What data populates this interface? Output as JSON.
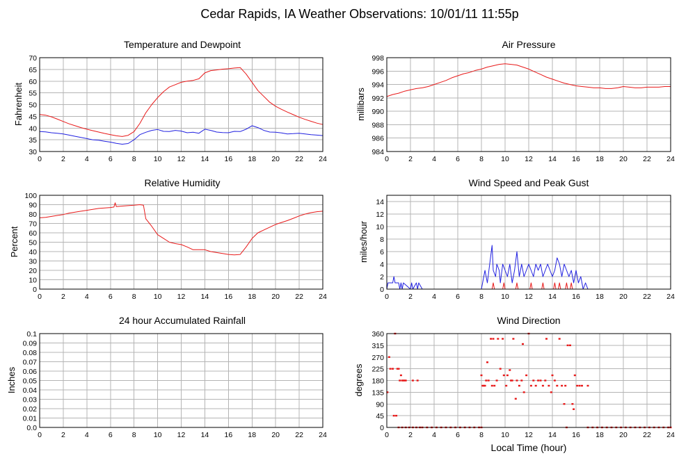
{
  "page_title": "Cedar Rapids, IA Weather Observations: 10/01/11 11:55p",
  "shared_xlabel": "Local Time (hour)",
  "colors": {
    "primary": "#e81919",
    "secondary": "#2020e0",
    "grid": "#b4b4b4",
    "frame": "#000000"
  },
  "chart_data": [
    {
      "id": "temperature",
      "type": "line",
      "title": "Temperature and Dewpoint",
      "ylabel": "Fahrenheit",
      "xlabel": "",
      "xlim": [
        0,
        24
      ],
      "ylim": [
        30,
        70
      ],
      "x_ticks": [
        0,
        2,
        4,
        6,
        8,
        10,
        12,
        14,
        16,
        18,
        20,
        22,
        24
      ],
      "y_ticks": [
        30,
        35,
        40,
        45,
        50,
        55,
        60,
        65,
        70
      ],
      "grid": true,
      "series": [
        {
          "color": "#e81919",
          "x": [
            0,
            0.5,
            1,
            1.5,
            2,
            2.5,
            3,
            3.5,
            4,
            4.5,
            5,
            5.5,
            6,
            6.5,
            7,
            7.5,
            8,
            8.5,
            9,
            9.5,
            10,
            10.5,
            11,
            11.5,
            12,
            12.5,
            13,
            13.5,
            14,
            14.5,
            15,
            15.5,
            16,
            16.5,
            17,
            17.5,
            18,
            18.5,
            19,
            19.5,
            20,
            20.5,
            21,
            21.5,
            22,
            22.5,
            23,
            23.5,
            24
          ],
          "values": [
            45.8,
            45.5,
            44.8,
            43.8,
            42.8,
            41.8,
            41,
            40.2,
            39.5,
            38.9,
            38.3,
            37.7,
            37.2,
            36.7,
            36.4,
            36.9,
            38.5,
            42,
            46.5,
            50,
            53,
            55.5,
            57.5,
            58.5,
            59.5,
            60,
            60.3,
            61,
            63.5,
            64.5,
            64.8,
            65.1,
            65.3,
            65.6,
            65.8,
            63,
            59.5,
            56,
            53.5,
            51,
            49.3,
            48,
            46.8,
            45.7,
            44.6,
            43.7,
            42.9,
            42.1,
            41.5
          ]
        },
        {
          "color": "#2020e0",
          "x": [
            0,
            0.5,
            1,
            1.5,
            2,
            2.5,
            3,
            3.5,
            4,
            4.5,
            5,
            5.5,
            6,
            6.5,
            7,
            7.5,
            8,
            8.5,
            9,
            9.5,
            10,
            10.5,
            11,
            11.5,
            12,
            12.5,
            13,
            13.5,
            14,
            14.5,
            15,
            15.5,
            16,
            16.5,
            17,
            17.5,
            18,
            18.5,
            19,
            19.5,
            20,
            20.5,
            21,
            21.5,
            22,
            22.5,
            23,
            23.5,
            24
          ],
          "values": [
            38.5,
            38.4,
            38,
            37.8,
            37.5,
            37,
            36.5,
            36,
            35.5,
            35,
            34.8,
            34.4,
            34,
            33.5,
            33.1,
            33.4,
            35,
            37.2,
            38.2,
            39,
            39.4,
            38.6,
            38.5,
            39,
            38.7,
            38,
            38.2,
            37.8,
            39.5,
            39,
            38.3,
            38.1,
            38,
            38.6,
            38.5,
            39.5,
            41,
            40.2,
            39,
            38.3,
            38.2,
            37.9,
            37.5,
            37.6,
            37.8,
            37.5,
            37.2,
            37,
            36.8
          ]
        }
      ]
    },
    {
      "id": "pressure",
      "type": "line",
      "title": "Air Pressure",
      "ylabel": "millibars",
      "xlabel": "",
      "xlim": [
        0,
        24
      ],
      "ylim": [
        984,
        998
      ],
      "x_ticks": [
        0,
        2,
        4,
        6,
        8,
        10,
        12,
        14,
        16,
        18,
        20,
        22,
        24
      ],
      "y_ticks": [
        984,
        986,
        988,
        990,
        992,
        994,
        996,
        998
      ],
      "grid": true,
      "series": [
        {
          "color": "#e81919",
          "x": [
            0,
            0.5,
            1,
            1.5,
            2,
            2.5,
            3,
            3.5,
            4,
            4.5,
            5,
            5.5,
            6,
            6.5,
            7,
            7.5,
            8,
            8.5,
            9,
            9.5,
            10,
            10.5,
            11,
            11.5,
            12,
            12.5,
            13,
            13.5,
            14,
            14.5,
            15,
            15.5,
            16,
            16.5,
            17,
            17.5,
            18,
            18.5,
            19,
            19.5,
            20,
            20.5,
            21,
            21.5,
            22,
            22.5,
            23,
            23.5,
            24
          ],
          "values": [
            992.2,
            992.5,
            992.7,
            993,
            993.2,
            993.4,
            993.5,
            993.7,
            994,
            994.3,
            994.6,
            995,
            995.3,
            995.6,
            995.8,
            996.1,
            996.3,
            996.6,
            996.8,
            997,
            997.1,
            997,
            996.9,
            996.6,
            996.3,
            995.9,
            995.5,
            995.1,
            994.8,
            994.5,
            994.2,
            994,
            993.8,
            993.7,
            993.6,
            993.5,
            993.5,
            993.4,
            993.4,
            993.5,
            993.7,
            993.6,
            993.5,
            993.5,
            993.6,
            993.6,
            993.6,
            993.7,
            993.7
          ]
        }
      ]
    },
    {
      "id": "humidity",
      "type": "line",
      "title": "Relative Humidity",
      "ylabel": "Percent",
      "xlabel": "",
      "xlim": [
        0,
        24
      ],
      "ylim": [
        0,
        100
      ],
      "x_ticks": [
        0,
        2,
        4,
        6,
        8,
        10,
        12,
        14,
        16,
        18,
        20,
        22,
        24
      ],
      "y_ticks": [
        0,
        10,
        20,
        30,
        40,
        50,
        60,
        70,
        80,
        90,
        100
      ],
      "grid": true,
      "series": [
        {
          "color": "#e81919",
          "x": [
            0,
            0.5,
            1,
            1.5,
            2,
            2.5,
            3,
            3.5,
            4,
            4.5,
            5,
            5.5,
            6,
            6.3,
            6.4,
            6.5,
            7,
            7.5,
            8,
            8.5,
            8.8,
            9,
            9.5,
            10,
            10.5,
            11,
            11.5,
            12,
            12.5,
            13,
            13.5,
            14,
            14.5,
            15,
            15.5,
            16,
            16.5,
            17,
            17.5,
            18,
            18.5,
            19,
            19.5,
            20,
            20.5,
            21,
            21.5,
            22,
            22.5,
            23,
            23.5,
            24
          ],
          "values": [
            76,
            76.5,
            77.5,
            78.5,
            79.5,
            81,
            82,
            83,
            84,
            85,
            86,
            86.5,
            87,
            87.5,
            92,
            88,
            88.5,
            89,
            89.5,
            90,
            89.5,
            75,
            67,
            58,
            54,
            50,
            48.5,
            47.5,
            45,
            42,
            42,
            42,
            40,
            39,
            38,
            37,
            36.5,
            37,
            45,
            54,
            60,
            63,
            66,
            69,
            71,
            73,
            75.5,
            78,
            80,
            81.5,
            82.5,
            83
          ]
        }
      ]
    },
    {
      "id": "wind_speed",
      "type": "line",
      "title": "Wind Speed and Peak Gust",
      "ylabel": "miles/hour",
      "xlabel": "",
      "xlim": [
        0,
        24
      ],
      "ylim": [
        0,
        15
      ],
      "x_ticks": [
        0,
        2,
        4,
        6,
        8,
        10,
        12,
        14,
        16,
        18,
        20,
        22,
        24
      ],
      "y_ticks": [
        0,
        2,
        4,
        6,
        8,
        10,
        12,
        14
      ],
      "grid": true,
      "series": [
        {
          "color": "#2020e0",
          "x": [
            0,
            0.1,
            0.5,
            0.6,
            0.7,
            0.8,
            1,
            1.1,
            1.2,
            1.3,
            1.4,
            2,
            2.1,
            2.2,
            2.5,
            2.6,
            2.7,
            3,
            8,
            8.1,
            8.3,
            8.4,
            8.5,
            8.7,
            8.9,
            9,
            9.2,
            9.3,
            9.5,
            9.6,
            9.8,
            10,
            10.2,
            10.4,
            10.6,
            10.8,
            11,
            11.2,
            11.4,
            11.6,
            11.8,
            12,
            12.2,
            12.4,
            12.6,
            12.8,
            13,
            13.2,
            13.4,
            13.6,
            13.8,
            14,
            14.2,
            14.4,
            14.6,
            14.8,
            15,
            15.2,
            15.4,
            15.6,
            15.8,
            16,
            16.2,
            16.4,
            16.6,
            16.8,
            17,
            17.2,
            18,
            24
          ],
          "values": [
            0,
            1,
            1,
            2,
            1,
            1,
            1,
            0,
            1,
            0,
            1,
            0,
            1,
            0,
            1,
            0,
            1,
            0,
            0,
            1,
            3,
            2,
            1,
            4,
            7,
            3,
            2,
            4,
            3,
            1,
            4,
            3,
            2,
            4,
            1,
            3,
            6,
            2,
            4,
            2,
            3,
            4,
            3,
            2,
            4,
            3,
            4,
            2,
            3,
            4,
            3,
            2,
            3,
            5,
            4,
            2,
            4,
            3,
            2,
            3,
            1,
            3,
            1,
            2,
            0,
            1,
            0,
            0,
            0,
            0
          ]
        },
        {
          "color": "#e81919",
          "x": [
            0,
            8.9,
            9,
            9.1,
            9.8,
            9.9,
            10,
            10.9,
            11,
            11.1,
            12.1,
            12.2,
            12.3,
            13.1,
            13.2,
            13.3,
            14.1,
            14.2,
            14.3,
            14.5,
            14.6,
            14.7,
            15.1,
            15.2,
            15.3,
            15.5,
            15.6,
            15.7,
            24
          ],
          "values": [
            0,
            0,
            1,
            0,
            0,
            1,
            0,
            0,
            1,
            0,
            0,
            1,
            0,
            0,
            1,
            0,
            0,
            1,
            0,
            0,
            1,
            0,
            0,
            1,
            0,
            0,
            1,
            0,
            0
          ]
        }
      ]
    },
    {
      "id": "rainfall",
      "type": "line",
      "title": "24 hour Accumulated Rainfall",
      "ylabel": "Inches",
      "xlabel": "",
      "xlim": [
        0,
        24
      ],
      "ylim": [
        0,
        0.1
      ],
      "x_ticks": [
        0,
        2,
        4,
        6,
        8,
        10,
        12,
        14,
        16,
        18,
        20,
        22,
        24
      ],
      "y_ticks": [
        0.0,
        0.01,
        0.02,
        0.03,
        0.04,
        0.05,
        0.06,
        0.07,
        0.08,
        0.09,
        0.1
      ],
      "y_tick_labels": [
        "0.0",
        "0.01",
        "0.02",
        "0.03",
        "0.04",
        "0.05",
        "0.06",
        "0.07",
        "0.08",
        "0.09",
        "0.1"
      ],
      "grid": true,
      "series": [
        {
          "color": "#e81919",
          "x": [
            0,
            24
          ],
          "values": [
            0,
            0
          ]
        }
      ]
    },
    {
      "id": "wind_direction",
      "type": "scatter",
      "title": "Wind Direction",
      "ylabel": "degrees",
      "xlabel": "Local Time (hour)",
      "xlim": [
        0,
        24
      ],
      "ylim": [
        0,
        360
      ],
      "x_ticks": [
        0,
        2,
        4,
        6,
        8,
        10,
        12,
        14,
        16,
        18,
        20,
        22,
        24
      ],
      "y_ticks": [
        0,
        45,
        90,
        135,
        180,
        225,
        270,
        315,
        360
      ],
      "grid": true,
      "series": [
        {
          "color": "#e81919",
          "x": [
            0.05,
            0.2,
            0.3,
            0.5,
            0.6,
            0.7,
            0.8,
            0.9,
            1.0,
            1.1,
            1.2,
            1.3,
            1.4,
            1.5,
            1.6,
            2.2,
            2.6,
            8.0,
            8.1,
            8.2,
            8.3,
            8.4,
            8.5,
            8.6,
            8.8,
            8.9,
            9.0,
            9.1,
            9.3,
            9.4,
            9.6,
            9.8,
            9.9,
            10.1,
            10.2,
            10.4,
            10.5,
            10.6,
            10.7,
            10.9,
            11.0,
            11.2,
            11.4,
            11.5,
            11.6,
            11.8,
            12.0,
            12.2,
            12.4,
            12.6,
            12.8,
            13.0,
            13.2,
            13.4,
            13.5,
            13.7,
            13.9,
            14.0,
            14.2,
            14.4,
            14.6,
            14.8,
            15.0,
            15.1,
            15.3,
            15.5,
            15.7,
            15.8,
            15.9,
            16.1,
            16.3,
            16.5,
            17.0
          ],
          "values": [
            135,
            270,
            225,
            225,
            45,
            360,
            45,
            225,
            225,
            180,
            200,
            180,
            180,
            180,
            180,
            180,
            180,
            200,
            160,
            160,
            160,
            180,
            250,
            180,
            340,
            160,
            340,
            160,
            180,
            340,
            225,
            340,
            200,
            160,
            200,
            220,
            180,
            180,
            340,
            110,
            180,
            160,
            180,
            320,
            135,
            200,
            360,
            160,
            180,
            160,
            180,
            180,
            160,
            180,
            340,
            160,
            135,
            200,
            180,
            160,
            340,
            160,
            90,
            160,
            315,
            315,
            90,
            70,
            200,
            160,
            160,
            160,
            160
          ]
        },
        {
          "color": "#e81919",
          "x": [
            1.0,
            1.3,
            1.6,
            1.9,
            2.2,
            2.5,
            2.8,
            3.0,
            3.4,
            3.8,
            4.2,
            4.6,
            5.0,
            5.4,
            5.8,
            6.2,
            6.6,
            7.0,
            7.4,
            7.8,
            8.0,
            15.2,
            17.0,
            17.4,
            17.8,
            18.2,
            18.6,
            19.0,
            19.4,
            19.8,
            20.2,
            20.6,
            21.0,
            21.4,
            21.8,
            22.2,
            22.6,
            23.0,
            23.4,
            23.8,
            24.0
          ],
          "values": [
            0,
            0,
            0,
            0,
            0,
            0,
            0,
            0,
            0,
            0,
            0,
            0,
            0,
            0,
            0,
            0,
            0,
            0,
            0,
            0,
            0,
            0,
            0,
            0,
            0,
            0,
            0,
            0,
            0,
            0,
            0,
            0,
            0,
            0,
            0,
            0,
            0,
            0,
            0,
            0,
            0
          ]
        }
      ]
    }
  ]
}
